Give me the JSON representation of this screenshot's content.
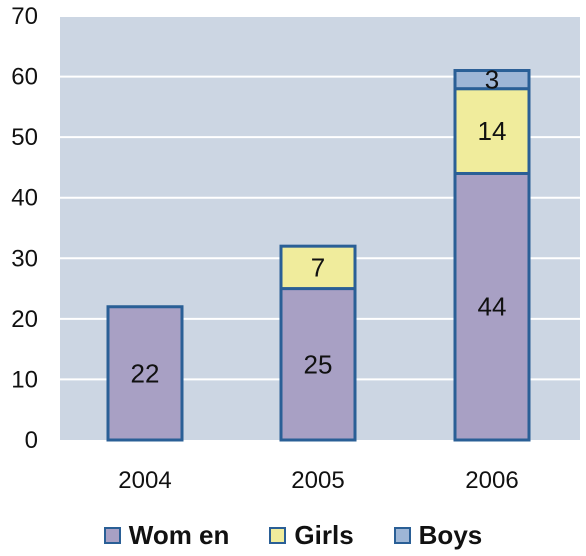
{
  "chart_data": {
    "type": "bar",
    "stacked": true,
    "categories": [
      "2004",
      "2005",
      "2006"
    ],
    "series": [
      {
        "name": "Wom en",
        "values": [
          22,
          25,
          44
        ],
        "color": "#a8a0c4"
      },
      {
        "name": "Girls",
        "values": [
          0,
          7,
          14
        ],
        "color": "#f0ec9c"
      },
      {
        "name": "Boys",
        "values": [
          0,
          0,
          3
        ],
        "color": "#9eb6d6"
      }
    ],
    "data_labels": [
      [
        "22",
        "25",
        "44"
      ],
      [
        "",
        "7",
        "14"
      ],
      [
        "",
        "",
        "3"
      ]
    ],
    "yticks": [
      "0",
      "10",
      "20",
      "30",
      "40",
      "50",
      "60",
      "70"
    ],
    "ylim": [
      0,
      70
    ],
    "grid": true,
    "legend_position": "bottom",
    "colors": {
      "plot_background": "#ccd6e3",
      "bar_outline": "#2a5f96",
      "gridline": "#ffffff"
    }
  }
}
